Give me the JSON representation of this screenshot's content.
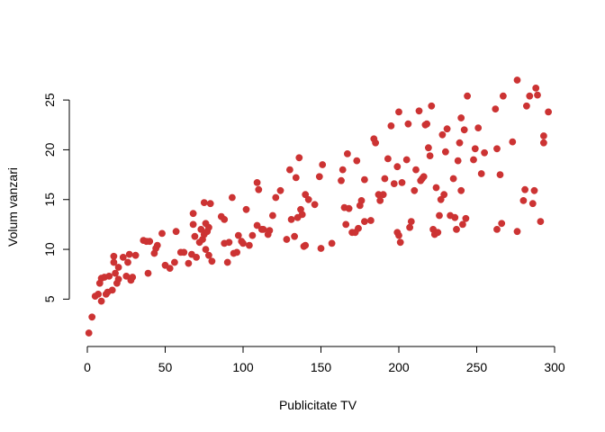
{
  "chart_data": {
    "type": "scatter",
    "title": "",
    "xlabel": "Publicitate TV",
    "ylabel": "Volum vanzari",
    "xlim": [
      0,
      300
    ],
    "ylim": [
      1.6,
      27
    ],
    "xticks": [
      0,
      50,
      100,
      150,
      200,
      250,
      300
    ],
    "yticks": [
      5,
      10,
      15,
      20,
      25
    ],
    "xtick_labels": [
      "0",
      "50",
      "100",
      "150",
      "200",
      "250",
      "300"
    ],
    "ytick_labels": [
      "5",
      "10",
      "15",
      "20",
      "25"
    ],
    "grid": false,
    "marker_color": "#CC3333",
    "points": [
      [
        1,
        1.6
      ],
      [
        3,
        3.2
      ],
      [
        5,
        5.3
      ],
      [
        7,
        5.5
      ],
      [
        8,
        6.6
      ],
      [
        9,
        4.8
      ],
      [
        9,
        7.1
      ],
      [
        11,
        7.2
      ],
      [
        12,
        5.5
      ],
      [
        13,
        5.7
      ],
      [
        14,
        7.3
      ],
      [
        16,
        5.9
      ],
      [
        17,
        8.7
      ],
      [
        17,
        9.3
      ],
      [
        18,
        7.6
      ],
      [
        19,
        6.6
      ],
      [
        20,
        7.0
      ],
      [
        20,
        8.2
      ],
      [
        23,
        9.2
      ],
      [
        25,
        7.3
      ],
      [
        26,
        8.7
      ],
      [
        27,
        9.5
      ],
      [
        28,
        6.9
      ],
      [
        29,
        7.2
      ],
      [
        31,
        9.4
      ],
      [
        36,
        10.9
      ],
      [
        38,
        10.8
      ],
      [
        39,
        7.6
      ],
      [
        40,
        10.8
      ],
      [
        43,
        9.6
      ],
      [
        44,
        10.1
      ],
      [
        45,
        10.4
      ],
      [
        48,
        11.6
      ],
      [
        50,
        8.4
      ],
      [
        53,
        8.1
      ],
      [
        56,
        8.7
      ],
      [
        57,
        11.8
      ],
      [
        60,
        9.7
      ],
      [
        62,
        9.7
      ],
      [
        65,
        8.6
      ],
      [
        67,
        9.5
      ],
      [
        68,
        12.5
      ],
      [
        68,
        13.6
      ],
      [
        69,
        11.3
      ],
      [
        70,
        9.2
      ],
      [
        72,
        10.7
      ],
      [
        73,
        12.0
      ],
      [
        74,
        11.0
      ],
      [
        75,
        11.5
      ],
      [
        75,
        14.7
      ],
      [
        76,
        10.0
      ],
      [
        76,
        12.6
      ],
      [
        77,
        11.8
      ],
      [
        78,
        9.4
      ],
      [
        78,
        12.2
      ],
      [
        79,
        14.6
      ],
      [
        80,
        8.8
      ],
      [
        86,
        13.3
      ],
      [
        88,
        10.6
      ],
      [
        88,
        13.0
      ],
      [
        90,
        8.7
      ],
      [
        91,
        10.7
      ],
      [
        93,
        15.2
      ],
      [
        94,
        9.6
      ],
      [
        96,
        9.7
      ],
      [
        97,
        11.4
      ],
      [
        99,
        10.8
      ],
      [
        100,
        10.6
      ],
      [
        102,
        14.0
      ],
      [
        104,
        10.4
      ],
      [
        106,
        11.4
      ],
      [
        109,
        12.4
      ],
      [
        109,
        16.7
      ],
      [
        110,
        16.0
      ],
      [
        112,
        12.0
      ],
      [
        113,
        12.0
      ],
      [
        116,
        11.5
      ],
      [
        117,
        11.9
      ],
      [
        119,
        13.4
      ],
      [
        121,
        15.2
      ],
      [
        124,
        15.9
      ],
      [
        128,
        11.0
      ],
      [
        130,
        18.0
      ],
      [
        131,
        13.0
      ],
      [
        133,
        11.3
      ],
      [
        134,
        17.2
      ],
      [
        135,
        13.2
      ],
      [
        136,
        19.2
      ],
      [
        137,
        14.0
      ],
      [
        138,
        13.5
      ],
      [
        139,
        10.3
      ],
      [
        140,
        15.5
      ],
      [
        140,
        10.4
      ],
      [
        142,
        15.0
      ],
      [
        146,
        14.5
      ],
      [
        149,
        17.3
      ],
      [
        150,
        10.1
      ],
      [
        151,
        18.5
      ],
      [
        157,
        10.6
      ],
      [
        163,
        16.9
      ],
      [
        164,
        18.0
      ],
      [
        165,
        14.2
      ],
      [
        166,
        12.5
      ],
      [
        167,
        19.6
      ],
      [
        168,
        14.1
      ],
      [
        170,
        11.7
      ],
      [
        172,
        11.7
      ],
      [
        173,
        18.9
      ],
      [
        174,
        12.1
      ],
      [
        175,
        14.4
      ],
      [
        176,
        14.9
      ],
      [
        178,
        17.0
      ],
      [
        178,
        12.8
      ],
      [
        182,
        12.9
      ],
      [
        184,
        21.1
      ],
      [
        185,
        20.7
      ],
      [
        187,
        15.5
      ],
      [
        188,
        14.9
      ],
      [
        190,
        15.5
      ],
      [
        191,
        17.1
      ],
      [
        193,
        19.1
      ],
      [
        195,
        22.4
      ],
      [
        197,
        16.6
      ],
      [
        199,
        11.7
      ],
      [
        199,
        18.3
      ],
      [
        200,
        11.4
      ],
      [
        200,
        23.8
      ],
      [
        201,
        10.7
      ],
      [
        202,
        16.7
      ],
      [
        205,
        19.0
      ],
      [
        206,
        22.6
      ],
      [
        207,
        12.2
      ],
      [
        208,
        12.8
      ],
      [
        210,
        15.9
      ],
      [
        211,
        18.0
      ],
      [
        213,
        23.9
      ],
      [
        214,
        16.9
      ],
      [
        215,
        17.1
      ],
      [
        216,
        17.3
      ],
      [
        217,
        22.5
      ],
      [
        218,
        22.6
      ],
      [
        219,
        20.2
      ],
      [
        220,
        19.4
      ],
      [
        221,
        24.4
      ],
      [
        222,
        12.0
      ],
      [
        223,
        11.5
      ],
      [
        224,
        16.2
      ],
      [
        225,
        11.7
      ],
      [
        226,
        13.4
      ],
      [
        227,
        15.0
      ],
      [
        228,
        21.5
      ],
      [
        229,
        15.5
      ],
      [
        230,
        19.8
      ],
      [
        231,
        22.1
      ],
      [
        233,
        13.4
      ],
      [
        235,
        17.1
      ],
      [
        236,
        13.2
      ],
      [
        237,
        12.0
      ],
      [
        238,
        18.9
      ],
      [
        239,
        20.7
      ],
      [
        240,
        15.9
      ],
      [
        240,
        23.2
      ],
      [
        241,
        12.5
      ],
      [
        242,
        22.0
      ],
      [
        243,
        13.1
      ],
      [
        244,
        25.4
      ],
      [
        248,
        19.0
      ],
      [
        249,
        20.1
      ],
      [
        251,
        22.2
      ],
      [
        253,
        17.6
      ],
      [
        255,
        19.7
      ],
      [
        262,
        24.1
      ],
      [
        263,
        12.0
      ],
      [
        263,
        20.1
      ],
      [
        265,
        17.5
      ],
      [
        266,
        12.6
      ],
      [
        267,
        25.4
      ],
      [
        273,
        20.8
      ],
      [
        276,
        11.8
      ],
      [
        276,
        27.0
      ],
      [
        280,
        14.9
      ],
      [
        281,
        16.0
      ],
      [
        282,
        24.4
      ],
      [
        284,
        25.4
      ],
      [
        286,
        14.6
      ],
      [
        287,
        15.9
      ],
      [
        288,
        26.2
      ],
      [
        289,
        25.5
      ],
      [
        291,
        12.8
      ],
      [
        293,
        21.4
      ],
      [
        293,
        20.7
      ],
      [
        296,
        23.8
      ]
    ]
  }
}
